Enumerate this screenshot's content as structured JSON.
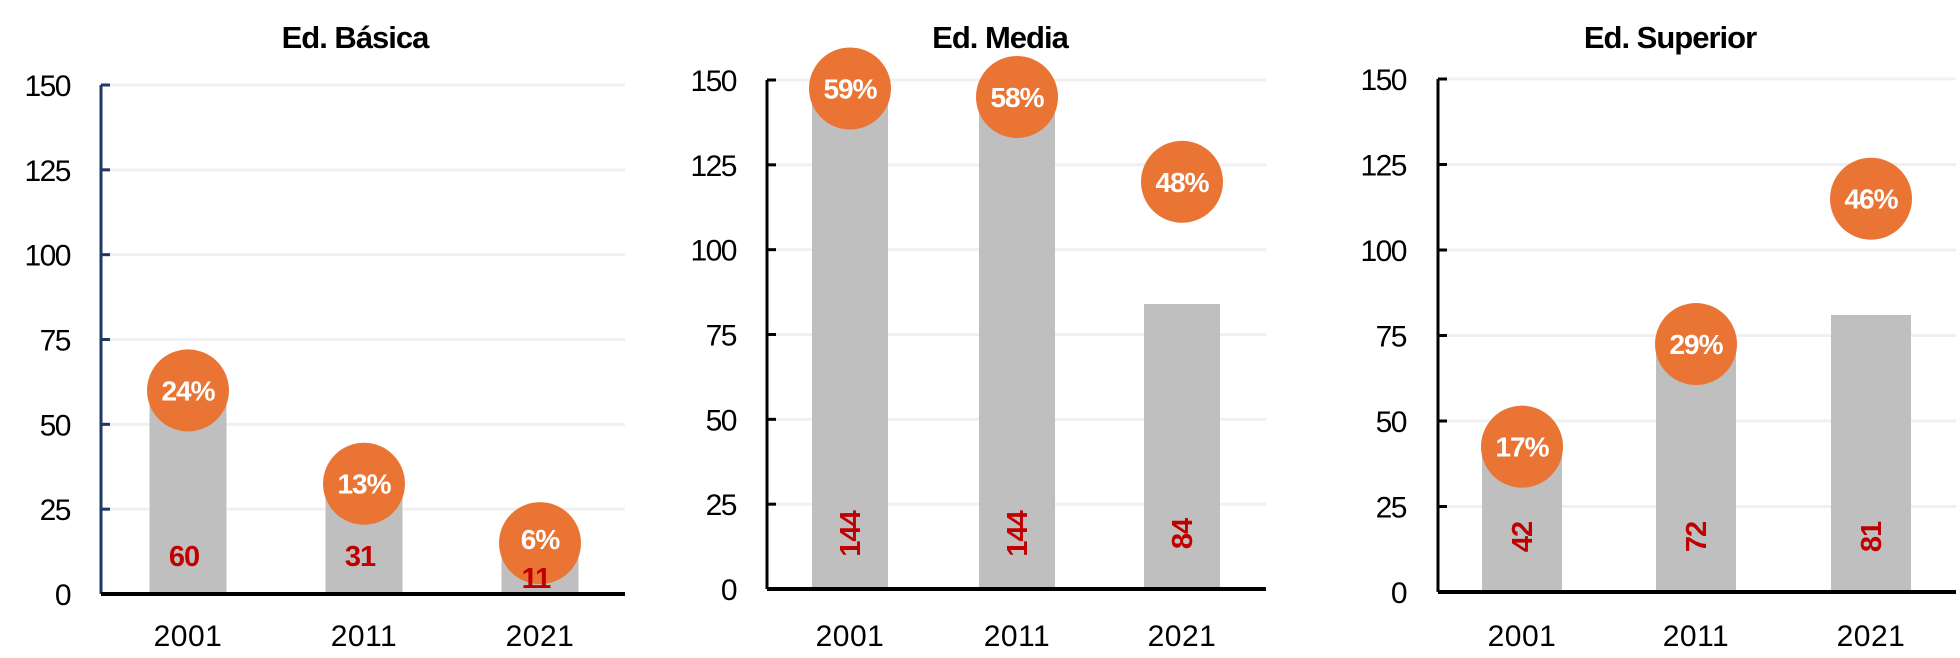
{
  "chart_data": [
    {
      "type": "bar",
      "title": "Ed. Básica",
      "categories": [
        "2001",
        "2011",
        "2021"
      ],
      "values": [
        60,
        31,
        11
      ],
      "value_labels": [
        "60",
        "31",
        "11"
      ],
      "percent_series": [
        24,
        13,
        6
      ],
      "percent_labels": [
        "24%",
        "13%",
        "6%"
      ],
      "ylim": [
        0,
        150
      ],
      "secondary_ylim": [
        0,
        60
      ],
      "yticks": [
        "0",
        "25",
        "50",
        "75",
        "100",
        "125",
        "150"
      ],
      "grid": true,
      "value_label_orientation": "horizontal"
    },
    {
      "type": "bar",
      "title": "Ed. Media",
      "categories": [
        "2001",
        "2011",
        "2021"
      ],
      "values": [
        144,
        144,
        84
      ],
      "value_labels": [
        "144",
        "144",
        "84"
      ],
      "percent_series": [
        59,
        58,
        48
      ],
      "percent_labels": [
        "59%",
        "58%",
        "48%"
      ],
      "ylim": [
        0,
        150
      ],
      "secondary_ylim": [
        0,
        60
      ],
      "yticks": [
        "0",
        "25",
        "50",
        "75",
        "100",
        "125",
        "150"
      ],
      "grid": true,
      "value_label_orientation": "vertical"
    },
    {
      "type": "bar",
      "title": "Ed. Superior",
      "categories": [
        "2001",
        "2011",
        "2021"
      ],
      "values": [
        42,
        72,
        81
      ],
      "value_labels": [
        "42",
        "72",
        "81"
      ],
      "percent_series": [
        17,
        29,
        46
      ],
      "percent_labels": [
        "17%",
        "29%",
        "46%"
      ],
      "ylim": [
        0,
        150
      ],
      "secondary_ylim": [
        0,
        60
      ],
      "yticks": [
        "0",
        "25",
        "50",
        "75",
        "100",
        "125",
        "150"
      ],
      "grid": true,
      "value_label_orientation": "vertical"
    }
  ],
  "colors": {
    "bar": "#bfbfbf",
    "bubble": "#e97434",
    "value_label": "#c00000",
    "grid": "#f0f0f0",
    "axis_first": "#1f3864",
    "axis": "#000000"
  }
}
